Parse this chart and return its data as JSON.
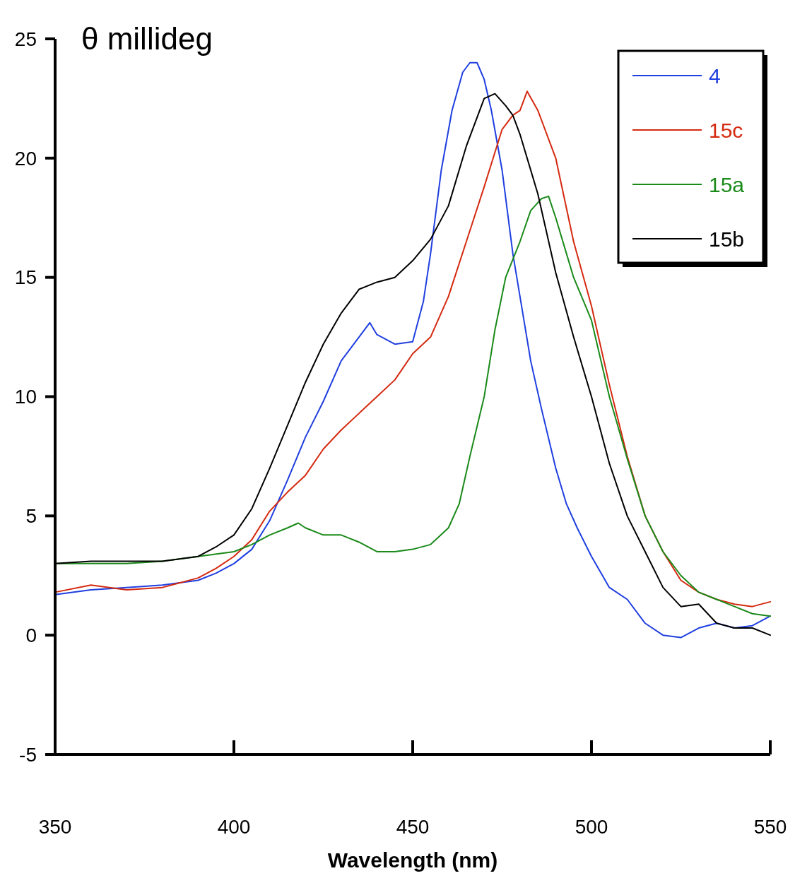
{
  "chart_data": {
    "type": "line",
    "xlabel": "Wavelength (nm)",
    "ylabel": "θ millideg",
    "xlim": [
      350,
      550
    ],
    "ylim": [
      -5,
      25
    ],
    "xticks": [
      350,
      400,
      450,
      500,
      550
    ],
    "yticks": [
      -5,
      0,
      5,
      10,
      15,
      20,
      25
    ],
    "grid": false,
    "legend": "top right",
    "marker": "none",
    "line_style": "solid",
    "series": [
      {
        "name": "4",
        "color": "#1f3fe0",
        "x": [
          350,
          360,
          370,
          380,
          390,
          395,
          400,
          405,
          410,
          415,
          420,
          425,
          430,
          435,
          438,
          440,
          445,
          450,
          453,
          455,
          458,
          461,
          464,
          466,
          468,
          470,
          472,
          475,
          478,
          480,
          483,
          486,
          490,
          493,
          496,
          500,
          505,
          510,
          515,
          520,
          525,
          530,
          535,
          540,
          545,
          550
        ],
        "values": [
          1.7,
          1.9,
          2.0,
          2.1,
          2.3,
          2.6,
          3.0,
          3.6,
          4.8,
          6.5,
          8.3,
          9.8,
          11.5,
          12.5,
          13.1,
          12.6,
          12.2,
          12.3,
          14.0,
          16.0,
          19.5,
          22.0,
          23.6,
          24.0,
          24.0,
          23.3,
          22.0,
          19.5,
          16.0,
          14.2,
          11.5,
          9.5,
          7.0,
          5.5,
          4.5,
          3.3,
          2.0,
          1.5,
          0.5,
          0.0,
          -0.1,
          0.3,
          0.5,
          0.3,
          0.4,
          0.8
        ]
      },
      {
        "name": "15c",
        "color": "#d42a10",
        "x": [
          350,
          360,
          370,
          380,
          390,
          395,
          400,
          405,
          410,
          415,
          420,
          425,
          430,
          435,
          440,
          445,
          450,
          455,
          460,
          465,
          470,
          475,
          478,
          480,
          482,
          485,
          490,
          495,
          500,
          505,
          510,
          515,
          520,
          525,
          530,
          535,
          540,
          545,
          550
        ],
        "values": [
          1.8,
          2.1,
          1.9,
          2.0,
          2.4,
          2.8,
          3.3,
          4.0,
          5.2,
          6.0,
          6.7,
          7.8,
          8.6,
          9.3,
          10.0,
          10.7,
          11.8,
          12.5,
          14.2,
          16.5,
          18.8,
          21.2,
          21.8,
          22.0,
          22.8,
          22.0,
          20.0,
          16.5,
          13.8,
          10.5,
          7.5,
          5.0,
          3.5,
          2.3,
          1.8,
          1.5,
          1.3,
          1.2,
          1.4
        ]
      },
      {
        "name": "15a",
        "color": "#1a8a1a",
        "x": [
          350,
          360,
          370,
          380,
          390,
          400,
          405,
          410,
          415,
          418,
          420,
          425,
          430,
          435,
          440,
          445,
          450,
          455,
          460,
          463,
          466,
          470,
          473,
          476,
          480,
          483,
          486,
          488,
          490,
          493,
          495,
          500,
          505,
          510,
          515,
          520,
          525,
          530,
          535,
          540,
          545,
          550
        ],
        "values": [
          3.0,
          3.0,
          3.0,
          3.1,
          3.3,
          3.5,
          3.8,
          4.2,
          4.5,
          4.7,
          4.5,
          4.2,
          4.2,
          3.9,
          3.5,
          3.5,
          3.6,
          3.8,
          4.5,
          5.5,
          7.5,
          10.0,
          12.8,
          15.0,
          16.5,
          17.8,
          18.3,
          18.4,
          17.5,
          16.0,
          15.0,
          13.2,
          10.0,
          7.4,
          5.0,
          3.5,
          2.5,
          1.8,
          1.5,
          1.2,
          0.9,
          0.8
        ]
      },
      {
        "name": "15b",
        "color": "#000000",
        "x": [
          350,
          360,
          370,
          380,
          390,
          395,
          400,
          405,
          410,
          415,
          420,
          425,
          430,
          435,
          440,
          445,
          450,
          455,
          460,
          465,
          470,
          473,
          476,
          478,
          480,
          485,
          490,
          495,
          500,
          505,
          510,
          515,
          520,
          525,
          530,
          535,
          540,
          545,
          550
        ],
        "values": [
          3.0,
          3.1,
          3.1,
          3.1,
          3.3,
          3.7,
          4.2,
          5.3,
          7.0,
          8.8,
          10.6,
          12.2,
          13.5,
          14.5,
          14.8,
          15.0,
          15.7,
          16.6,
          18.0,
          20.5,
          22.5,
          22.7,
          22.2,
          21.8,
          21.0,
          18.5,
          15.2,
          12.5,
          10.0,
          7.2,
          5.0,
          3.5,
          2.0,
          1.2,
          1.3,
          0.5,
          0.3,
          0.3,
          0.0
        ]
      }
    ]
  }
}
